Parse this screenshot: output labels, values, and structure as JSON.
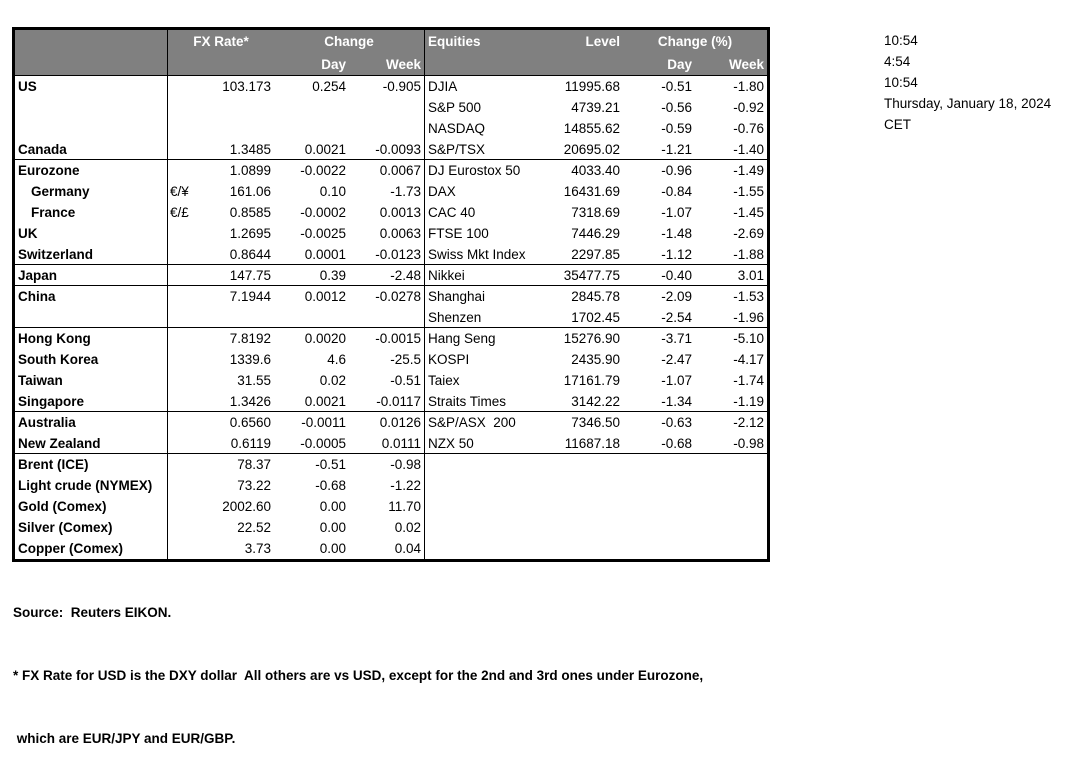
{
  "header": {
    "fx_rate": "FX Rate*",
    "change": "Change",
    "day": "Day",
    "week": "Week",
    "equities": "Equities",
    "level": "Level",
    "change_pct": "Change (%)"
  },
  "table": {
    "rows": [
      {
        "region": "US",
        "pair": "",
        "rate": "103.173",
        "day": "0.254",
        "week": "-0.905",
        "eq": "DJIA",
        "level": "11995.68",
        "eq_day": "-0.51",
        "eq_week": "-1.80"
      },
      {
        "region": "",
        "pair": "",
        "rate": "",
        "day": "",
        "week": "",
        "eq": "S&P 500",
        "level": "4739.21",
        "eq_day": "-0.56",
        "eq_week": "-0.92"
      },
      {
        "region": "",
        "pair": "",
        "rate": "",
        "day": "",
        "week": "",
        "eq": "NASDAQ",
        "level": "14855.62",
        "eq_day": "-0.59",
        "eq_week": "-0.76"
      },
      {
        "region": "Canada",
        "pair": "",
        "rate": "1.3485",
        "day": "0.0021",
        "week": "-0.0093",
        "eq": "S&P/TSX",
        "level": "20695.02",
        "eq_day": "-1.21",
        "eq_week": "-1.40"
      },
      {
        "region": "Eurozone",
        "pair": "",
        "rate": "1.0899",
        "day": "-0.0022",
        "week": "0.0067",
        "eq": "DJ Eurostox 50",
        "level": "4033.40",
        "eq_day": "-0.96",
        "eq_week": "-1.49"
      },
      {
        "region": "Germany",
        "pair": "€/¥",
        "rate": "161.06",
        "day": "0.10",
        "week": "-1.73",
        "eq": "DAX",
        "level": "16431.69",
        "eq_day": "-0.84",
        "eq_week": "-1.55"
      },
      {
        "region": "France",
        "pair": "€/£",
        "rate": "0.8585",
        "day": "-0.0002",
        "week": "0.0013",
        "eq": "CAC 40",
        "level": "7318.69",
        "eq_day": "-1.07",
        "eq_week": "-1.45"
      },
      {
        "region": "UK",
        "pair": "",
        "rate": "1.2695",
        "day": "-0.0025",
        "week": "0.0063",
        "eq": "FTSE 100",
        "level": "7446.29",
        "eq_day": "-1.48",
        "eq_week": "-2.69"
      },
      {
        "region": "Switzerland",
        "pair": "",
        "rate": "0.8644",
        "day": "0.0001",
        "week": "-0.0123",
        "eq": "Swiss Mkt Index",
        "level": "2297.85",
        "eq_day": "-1.12",
        "eq_week": "-1.88"
      },
      {
        "region": "Japan",
        "pair": "",
        "rate": "147.75",
        "day": "0.39",
        "week": "-2.48",
        "eq": "Nikkei",
        "level": "35477.75",
        "eq_day": "-0.40",
        "eq_week": "3.01"
      },
      {
        "region": "China",
        "pair": "",
        "rate": "7.1944",
        "day": "0.0012",
        "week": "-0.0278",
        "eq": "Shanghai",
        "level": "2845.78",
        "eq_day": "-2.09",
        "eq_week": "-1.53"
      },
      {
        "region": "",
        "pair": "",
        "rate": "",
        "day": "",
        "week": "",
        "eq": "Shenzen",
        "level": "1702.45",
        "eq_day": "-2.54",
        "eq_week": "-1.96"
      },
      {
        "region": "Hong Kong",
        "pair": "",
        "rate": "7.8192",
        "day": "0.0020",
        "week": "-0.0015",
        "eq": "Hang Seng",
        "level": "15276.90",
        "eq_day": "-3.71",
        "eq_week": "-5.10"
      },
      {
        "region": "South Korea",
        "pair": "",
        "rate": "1339.6",
        "day": "4.6",
        "week": "-25.5",
        "eq": "KOSPI",
        "level": "2435.90",
        "eq_day": "-2.47",
        "eq_week": "-4.17"
      },
      {
        "region": "Taiwan",
        "pair": "",
        "rate": "31.55",
        "day": "0.02",
        "week": "-0.51",
        "eq": "Taiex",
        "level": "17161.79",
        "eq_day": "-1.07",
        "eq_week": "-1.74"
      },
      {
        "region": "Singapore",
        "pair": "",
        "rate": "1.3426",
        "day": "0.0021",
        "week": "-0.0117",
        "eq": "Straits Times",
        "level": "3142.22",
        "eq_day": "-1.34",
        "eq_week": "-1.19"
      },
      {
        "region": "Australia",
        "pair": "",
        "rate": "0.6560",
        "day": "-0.0011",
        "week": "0.0126",
        "eq": "S&P/ASX  200",
        "level": "7346.50",
        "eq_day": "-0.63",
        "eq_week": "-2.12"
      },
      {
        "region": "New Zealand",
        "pair": "",
        "rate": "0.6119",
        "day": "-0.0005",
        "week": "0.0111",
        "eq": "NZX 50",
        "level": "11687.18",
        "eq_day": "-0.68",
        "eq_week": "-0.98"
      },
      {
        "region": "Brent (ICE)",
        "pair": "",
        "rate": "78.37",
        "day": "-0.51",
        "week": "-0.98",
        "eq": "",
        "level": "",
        "eq_day": "",
        "eq_week": ""
      },
      {
        "region": "Light crude (NYMEX)",
        "pair": "",
        "rate": "73.22",
        "day": "-0.68",
        "week": "-1.22",
        "eq": "",
        "level": "",
        "eq_day": "",
        "eq_week": ""
      },
      {
        "region": "Gold (Comex)",
        "pair": "",
        "rate": "2002.60",
        "day": "0.00",
        "week": "11.70",
        "eq": "",
        "level": "",
        "eq_day": "",
        "eq_week": ""
      },
      {
        "region": "Silver (Comex)",
        "pair": "",
        "rate": "22.52",
        "day": "0.00",
        "week": "0.02",
        "eq": "",
        "level": "",
        "eq_day": "",
        "eq_week": ""
      },
      {
        "region": "Copper (Comex)",
        "pair": "",
        "rate": "3.73",
        "day": "0.00",
        "week": "0.04",
        "eq": "",
        "level": "",
        "eq_day": "",
        "eq_week": ""
      }
    ]
  },
  "times": {
    "lines": [
      "10:54",
      "4:54",
      "10:54",
      "Thursday, January 18, 2024",
      "CET"
    ]
  },
  "footer": {
    "source": "Source:  Reuters EIKON.",
    "note1": "* FX Rate for USD is the DXY dollar  All others are vs USD, except for the 2nd and 3rd ones under Eurozone,",
    "note2": " which are EUR/JPY and EUR/GBP."
  },
  "colors": {
    "header_bg": "#808080",
    "header_text": "#ffffff",
    "border": "#000000",
    "text": "#000000"
  }
}
